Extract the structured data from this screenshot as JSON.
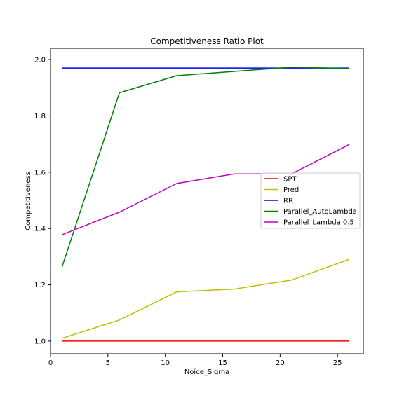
{
  "chart_data": {
    "type": "line",
    "title": "Competitiveness Ratio Plot",
    "xlabel": "Noice_Sigma",
    "ylabel": "Competitiveness",
    "xlim": [
      0,
      27.25
    ],
    "ylim": [
      0.955,
      2.04
    ],
    "xticks": [
      0,
      5,
      10,
      15,
      20,
      25
    ],
    "yticks": [
      1.0,
      1.2,
      1.4,
      1.6,
      1.8,
      2.0
    ],
    "xtick_labels": [
      "0",
      "5",
      "10",
      "15",
      "20",
      "25"
    ],
    "ytick_labels": [
      "1.0",
      "1.2",
      "1.4",
      "1.6",
      "1.8",
      "2.0"
    ],
    "grid": false,
    "legend_position": "center-right",
    "x": [
      1,
      6,
      11,
      16,
      21,
      26
    ],
    "series": [
      {
        "name": "SPT",
        "color": "#ff0000",
        "values": [
          1.0,
          1.0,
          1.0,
          1.0,
          1.0,
          1.0
        ]
      },
      {
        "name": "Pred",
        "color": "#bfbf00",
        "values": [
          1.01,
          1.075,
          1.175,
          1.185,
          1.217,
          1.29
        ]
      },
      {
        "name": "RR",
        "color": "#0000ff",
        "values": [
          1.97,
          1.97,
          1.97,
          1.97,
          1.97,
          1.97
        ]
      },
      {
        "name": "Parallel_AutoLambda",
        "color": "#008000",
        "values": [
          1.263,
          1.882,
          1.943,
          1.958,
          1.973,
          1.968
        ]
      },
      {
        "name": "Parallel_Lambda 0.5",
        "color": "#bf00bf",
        "values": [
          1.378,
          1.458,
          1.56,
          1.594,
          1.594,
          1.698
        ]
      }
    ]
  }
}
